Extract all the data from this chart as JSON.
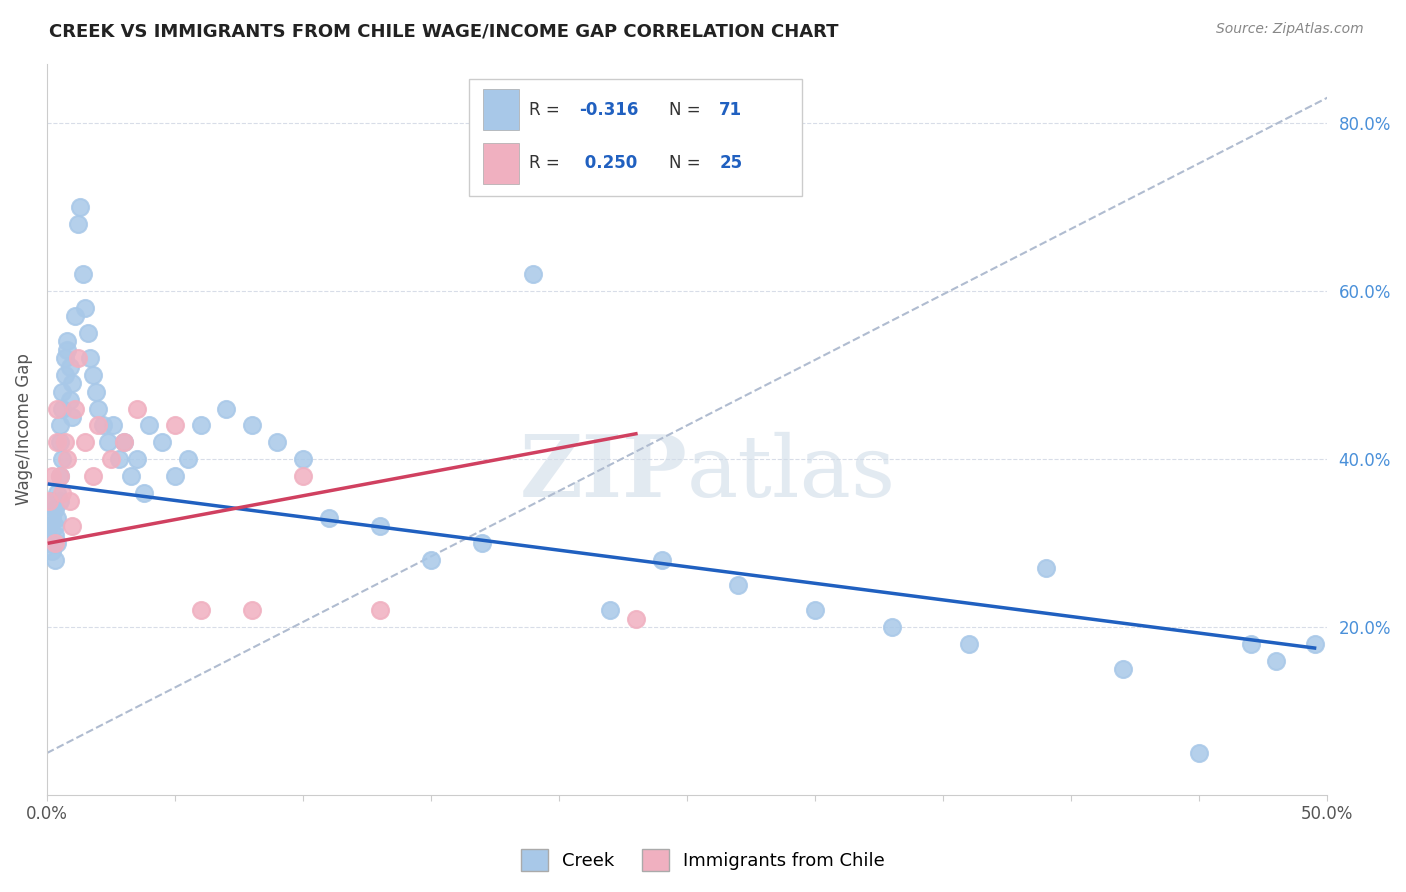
{
  "title": "CREEK VS IMMIGRANTS FROM CHILE WAGE/INCOME GAP CORRELATION CHART",
  "source": "Source: ZipAtlas.com",
  "ylabel": "Wage/Income Gap",
  "watermark_zip": "ZIP",
  "watermark_atlas": "atlas",
  "legend_creek": "Creek",
  "legend_chile": "Immigrants from Chile",
  "creek_R": -0.316,
  "creek_N": 71,
  "chile_R": 0.25,
  "chile_N": 25,
  "creek_color": "#a8c8e8",
  "chile_color": "#f0b0c0",
  "creek_line_color": "#2060c0",
  "chile_line_color": "#d04060",
  "dashed_line_color": "#b0bcd0",
  "xlim": [
    0.0,
    0.5
  ],
  "ylim": [
    0.0,
    0.87
  ],
  "yticks": [
    0.2,
    0.4,
    0.6,
    0.8
  ],
  "xticks": [
    0.0,
    0.05,
    0.1,
    0.15,
    0.2,
    0.25,
    0.3,
    0.35,
    0.4,
    0.45,
    0.5
  ],
  "xtick_labels": [
    "0.0%",
    "",
    "",
    "",
    "",
    "",
    "",
    "",
    "",
    "",
    "50.0%"
  ],
  "creek_x": [
    0.001,
    0.001,
    0.002,
    0.002,
    0.002,
    0.003,
    0.003,
    0.003,
    0.003,
    0.004,
    0.004,
    0.004,
    0.005,
    0.005,
    0.005,
    0.005,
    0.006,
    0.006,
    0.006,
    0.007,
    0.007,
    0.008,
    0.008,
    0.009,
    0.009,
    0.01,
    0.01,
    0.011,
    0.012,
    0.013,
    0.014,
    0.015,
    0.016,
    0.017,
    0.018,
    0.019,
    0.02,
    0.022,
    0.024,
    0.026,
    0.028,
    0.03,
    0.033,
    0.035,
    0.038,
    0.04,
    0.045,
    0.05,
    0.055,
    0.06,
    0.07,
    0.08,
    0.09,
    0.1,
    0.11,
    0.13,
    0.15,
    0.17,
    0.19,
    0.22,
    0.24,
    0.27,
    0.3,
    0.33,
    0.36,
    0.39,
    0.42,
    0.45,
    0.47,
    0.48,
    0.495
  ],
  "creek_y": [
    0.32,
    0.3,
    0.33,
    0.29,
    0.35,
    0.32,
    0.31,
    0.34,
    0.28,
    0.36,
    0.33,
    0.3,
    0.38,
    0.35,
    0.42,
    0.44,
    0.46,
    0.4,
    0.48,
    0.5,
    0.52,
    0.54,
    0.53,
    0.47,
    0.51,
    0.49,
    0.45,
    0.57,
    0.68,
    0.7,
    0.62,
    0.58,
    0.55,
    0.52,
    0.5,
    0.48,
    0.46,
    0.44,
    0.42,
    0.44,
    0.4,
    0.42,
    0.38,
    0.4,
    0.36,
    0.44,
    0.42,
    0.38,
    0.4,
    0.44,
    0.46,
    0.44,
    0.42,
    0.4,
    0.33,
    0.32,
    0.28,
    0.3,
    0.62,
    0.22,
    0.28,
    0.25,
    0.22,
    0.2,
    0.18,
    0.27,
    0.15,
    0.05,
    0.18,
    0.16,
    0.18
  ],
  "chile_x": [
    0.001,
    0.002,
    0.003,
    0.004,
    0.004,
    0.005,
    0.006,
    0.007,
    0.008,
    0.009,
    0.01,
    0.011,
    0.012,
    0.015,
    0.018,
    0.02,
    0.025,
    0.03,
    0.035,
    0.05,
    0.06,
    0.08,
    0.1,
    0.13,
    0.23
  ],
  "chile_y": [
    0.35,
    0.38,
    0.3,
    0.46,
    0.42,
    0.38,
    0.36,
    0.42,
    0.4,
    0.35,
    0.32,
    0.46,
    0.52,
    0.42,
    0.38,
    0.44,
    0.4,
    0.42,
    0.46,
    0.44,
    0.22,
    0.22,
    0.38,
    0.22,
    0.21
  ],
  "creek_line_x": [
    0.001,
    0.495
  ],
  "creek_line_y": [
    0.37,
    0.175
  ],
  "chile_line_x": [
    0.001,
    0.23
  ],
  "chile_line_y": [
    0.3,
    0.43
  ],
  "dashed_line_x": [
    0.0,
    0.5
  ],
  "dashed_line_y": [
    0.05,
    0.83
  ],
  "background_color": "#ffffff",
  "grid_color": "#d8dde8",
  "spine_color": "#cccccc",
  "tick_label_color": "#555555",
  "right_tick_color": "#4a90d9",
  "title_color": "#222222",
  "source_color": "#888888",
  "watermark_color": "#d0dce8"
}
